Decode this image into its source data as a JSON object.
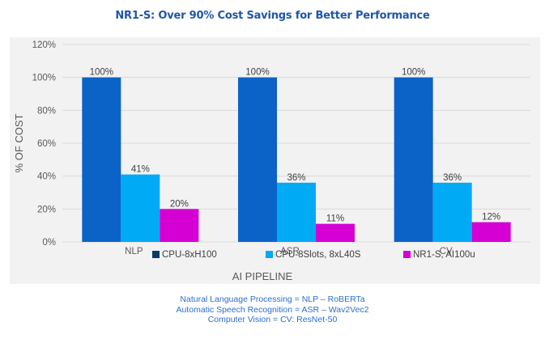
{
  "title": "NR1-S: Over 90% Cost Savings for Better Performance",
  "chart_data": {
    "type": "bar",
    "title": "NR1-S: Over 90% Cost Savings for Better Performance",
    "xlabel": "AI PIPELINE",
    "ylabel": "% OF COST",
    "categories": [
      "NLP",
      "ASR",
      "CV"
    ],
    "series": [
      {
        "name": "CPU-8xH100",
        "color": "#0b63c7",
        "values": [
          100,
          100,
          100
        ],
        "labels": [
          "100%",
          "100%",
          "100%"
        ]
      },
      {
        "name": "CPU-8Slots, 8xL40S",
        "color": "#00aaf5",
        "values": [
          41,
          36,
          36
        ],
        "labels": [
          "41%",
          "36%",
          "36%"
        ]
      },
      {
        "name": "NR1-S, AI100u",
        "color": "#d400d4",
        "values": [
          20,
          11,
          12
        ],
        "labels": [
          "20%",
          "11%",
          "12%"
        ]
      }
    ],
    "ylim": [
      0,
      120
    ],
    "yticks": [
      0,
      20,
      40,
      60,
      80,
      100,
      120
    ],
    "ytick_labels": [
      "0%",
      "20%",
      "40%",
      "60%",
      "80%",
      "100%",
      "120%"
    ],
    "grid": true,
    "legend_position": "bottom"
  },
  "footnotes": [
    "Natural Language Processing = NLP – RoBERTa",
    "Automatic Speech Recognition = ASR – Wav2Vec2",
    "Computer Vision = CV: ResNet-50"
  ]
}
